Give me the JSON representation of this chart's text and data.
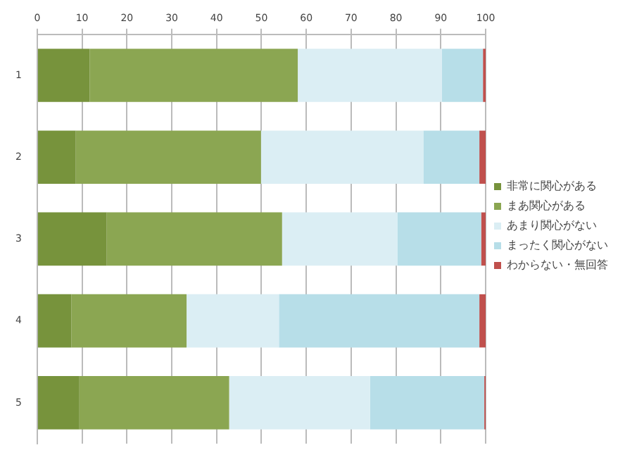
{
  "chart_data": {
    "type": "bar",
    "orientation": "horizontal",
    "stacked": true,
    "categories": [
      "1",
      "2",
      "3",
      "4",
      "5"
    ],
    "series": [
      {
        "name": "非常に関心がある",
        "color": "#77933c",
        "values": [
          11.7,
          8.6,
          15.5,
          7.6,
          9.4
        ]
      },
      {
        "name": "まあ関心がある",
        "color": "#8ba652",
        "values": [
          46.4,
          41.3,
          39.1,
          25.7,
          33.4
        ]
      },
      {
        "name": "あまり関心がない",
        "color": "#dbeef4",
        "values": [
          32.1,
          36.2,
          25.7,
          20.6,
          31.4
        ]
      },
      {
        "name": "まったく関心がない",
        "color": "#b7dee8",
        "values": [
          9.2,
          12.5,
          18.7,
          44.7,
          25.5
        ]
      },
      {
        "name": "わからない・無回答",
        "color": "#c0504d",
        "values": [
          0.6,
          1.4,
          1.0,
          1.4,
          0.3
        ]
      }
    ],
    "xlim": [
      0,
      100
    ],
    "xticks": [
      0,
      10,
      20,
      30,
      40,
      50,
      60,
      70,
      80,
      90,
      100
    ],
    "grid": "x",
    "legend": "right"
  }
}
